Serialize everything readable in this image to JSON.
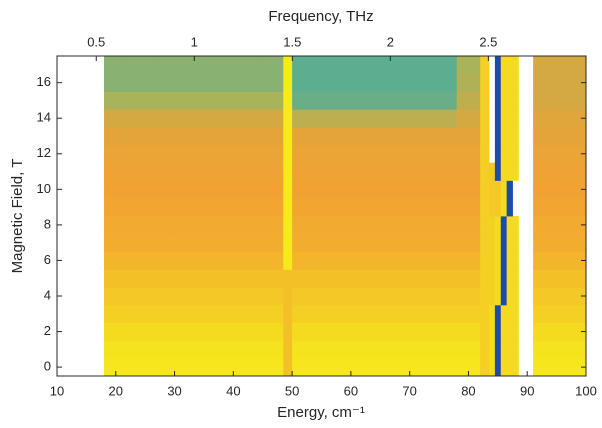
{
  "chart_data": {
    "type": "heatmap",
    "xlabel": "Energy, cm⁻¹",
    "ylabel": "Magnetic Field, T",
    "x2label": "Frequency, THz",
    "xlim": [
      10,
      100
    ],
    "xticks": [
      10,
      20,
      30,
      40,
      50,
      60,
      70,
      80,
      90,
      100
    ],
    "ylim": [
      -0.5,
      17.5
    ],
    "yticks": [
      0,
      2,
      4,
      6,
      8,
      10,
      12,
      14,
      16
    ],
    "x2lim": [
      0.2998,
      2.998
    ],
    "x2ticks": [
      0.5,
      1,
      1.5,
      2,
      2.5
    ],
    "colormap": [
      "#1d3c9e",
      "#1977d0",
      "#2aa9b5",
      "#a9b35a",
      "#f2a232",
      "#f6ee1a"
    ],
    "x_edges": [
      18,
      21,
      24,
      27,
      30,
      35,
      40,
      45,
      48.5,
      50,
      53,
      57,
      62,
      70,
      78,
      82,
      83.5,
      84.5,
      85.5,
      86.5,
      87.5,
      88.5,
      91,
      95,
      100
    ],
    "y": [
      0,
      1,
      2,
      3,
      4,
      5,
      6,
      7,
      8,
      9,
      10,
      11,
      12,
      13,
      14,
      15,
      16,
      17
    ],
    "z": [
      [
        0.98,
        0.98,
        0.98,
        0.98,
        0.98,
        0.98,
        0.98,
        0.98,
        0.88,
        0.98,
        0.98,
        0.98,
        0.98,
        0.98,
        0.98,
        0.92,
        0.95,
        0.05,
        0.95,
        0.95,
        0.95,
        null,
        0.98,
        0.98
      ],
      [
        0.97,
        0.97,
        0.97,
        0.97,
        0.97,
        0.97,
        0.97,
        0.97,
        0.88,
        0.97,
        0.97,
        0.97,
        0.97,
        0.97,
        0.97,
        0.92,
        0.95,
        0.05,
        0.95,
        0.95,
        0.95,
        null,
        0.97,
        0.97
      ],
      [
        0.95,
        0.95,
        0.95,
        0.95,
        0.95,
        0.95,
        0.95,
        0.95,
        0.88,
        0.95,
        0.95,
        0.95,
        0.95,
        0.95,
        0.95,
        0.92,
        0.95,
        0.05,
        0.95,
        0.95,
        0.95,
        null,
        0.95,
        0.95
      ],
      [
        0.92,
        0.92,
        0.92,
        0.92,
        0.92,
        0.92,
        0.92,
        0.92,
        0.88,
        0.92,
        0.92,
        0.92,
        0.92,
        0.92,
        0.92,
        0.92,
        0.95,
        0.05,
        0.95,
        0.95,
        0.95,
        null,
        0.92,
        0.92
      ],
      [
        0.9,
        0.9,
        0.9,
        0.9,
        0.9,
        0.9,
        0.9,
        0.9,
        0.88,
        0.9,
        0.9,
        0.9,
        0.9,
        0.9,
        0.9,
        0.92,
        0.92,
        0.95,
        0.05,
        0.95,
        0.95,
        null,
        0.9,
        0.9
      ],
      [
        0.88,
        0.88,
        0.88,
        0.88,
        0.88,
        0.88,
        0.88,
        0.88,
        0.88,
        0.88,
        0.88,
        0.88,
        0.88,
        0.88,
        0.88,
        0.92,
        0.92,
        0.95,
        0.05,
        0.95,
        0.95,
        null,
        0.88,
        0.88
      ],
      [
        0.85,
        0.85,
        0.85,
        0.85,
        0.85,
        0.85,
        0.85,
        0.85,
        0.99,
        0.85,
        0.85,
        0.85,
        0.85,
        0.85,
        0.85,
        0.92,
        0.92,
        0.95,
        0.05,
        0.95,
        0.95,
        null,
        0.85,
        0.85
      ],
      [
        0.83,
        0.83,
        0.83,
        0.83,
        0.83,
        0.83,
        0.83,
        0.83,
        0.99,
        0.83,
        0.83,
        0.83,
        0.83,
        0.83,
        0.83,
        0.92,
        0.92,
        0.95,
        0.05,
        0.95,
        0.95,
        null,
        0.83,
        0.83
      ],
      [
        0.82,
        0.82,
        0.82,
        0.82,
        0.82,
        0.82,
        0.82,
        0.82,
        0.99,
        0.82,
        0.82,
        0.82,
        0.82,
        0.82,
        0.82,
        0.92,
        0.92,
        0.95,
        0.05,
        0.95,
        0.95,
        null,
        0.82,
        0.82
      ],
      [
        0.81,
        0.81,
        0.81,
        0.81,
        0.81,
        0.81,
        0.81,
        0.81,
        0.99,
        0.81,
        0.81,
        0.81,
        0.81,
        0.81,
        0.81,
        0.92,
        0.9,
        0.9,
        0.95,
        0.05,
        null,
        null,
        0.81,
        0.81
      ],
      [
        0.8,
        0.8,
        0.8,
        0.8,
        0.8,
        0.8,
        0.8,
        0.8,
        0.99,
        0.8,
        0.8,
        0.8,
        0.8,
        0.8,
        0.8,
        0.92,
        0.9,
        0.9,
        0.95,
        0.05,
        null,
        null,
        0.8,
        0.8
      ],
      [
        0.79,
        0.79,
        0.79,
        0.79,
        0.79,
        0.79,
        0.79,
        0.79,
        0.99,
        0.79,
        0.79,
        0.79,
        0.79,
        0.79,
        0.79,
        0.92,
        0.9,
        0.05,
        0.95,
        0.95,
        0.95,
        null,
        0.79,
        0.79
      ],
      [
        0.78,
        0.78,
        0.78,
        0.78,
        0.78,
        0.78,
        0.78,
        0.78,
        0.99,
        0.78,
        0.78,
        0.78,
        0.78,
        0.78,
        0.78,
        0.92,
        null,
        0.05,
        0.95,
        0.95,
        0.95,
        null,
        0.78,
        0.78
      ],
      [
        0.76,
        0.76,
        0.76,
        0.76,
        0.76,
        0.76,
        0.76,
        0.76,
        0.99,
        0.76,
        0.76,
        0.76,
        0.76,
        0.76,
        0.76,
        0.92,
        null,
        0.05,
        0.95,
        0.95,
        0.95,
        null,
        0.76,
        0.76
      ],
      [
        0.72,
        0.72,
        0.72,
        0.72,
        0.72,
        0.72,
        0.72,
        0.72,
        0.99,
        0.65,
        0.65,
        0.65,
        0.65,
        0.65,
        0.72,
        0.92,
        null,
        0.05,
        0.95,
        0.95,
        0.95,
        null,
        0.75,
        0.75
      ],
      [
        0.6,
        0.6,
        0.6,
        0.6,
        0.6,
        0.6,
        0.6,
        0.6,
        0.99,
        0.5,
        0.5,
        0.5,
        0.5,
        0.5,
        0.66,
        0.92,
        null,
        0.05,
        0.95,
        0.95,
        0.95,
        null,
        0.72,
        0.72
      ],
      [
        0.55,
        0.55,
        0.55,
        0.55,
        0.55,
        0.55,
        0.55,
        0.55,
        0.99,
        0.48,
        0.48,
        0.48,
        0.48,
        0.48,
        0.62,
        0.92,
        null,
        0.05,
        0.95,
        0.95,
        0.95,
        null,
        0.72,
        0.72
      ],
      [
        0.55,
        0.55,
        0.55,
        0.55,
        0.55,
        0.55,
        0.55,
        0.55,
        0.99,
        0.48,
        0.48,
        0.48,
        0.48,
        0.48,
        0.6,
        0.92,
        null,
        0.05,
        0.95,
        0.95,
        0.95,
        null,
        0.72,
        0.72
      ]
    ]
  }
}
